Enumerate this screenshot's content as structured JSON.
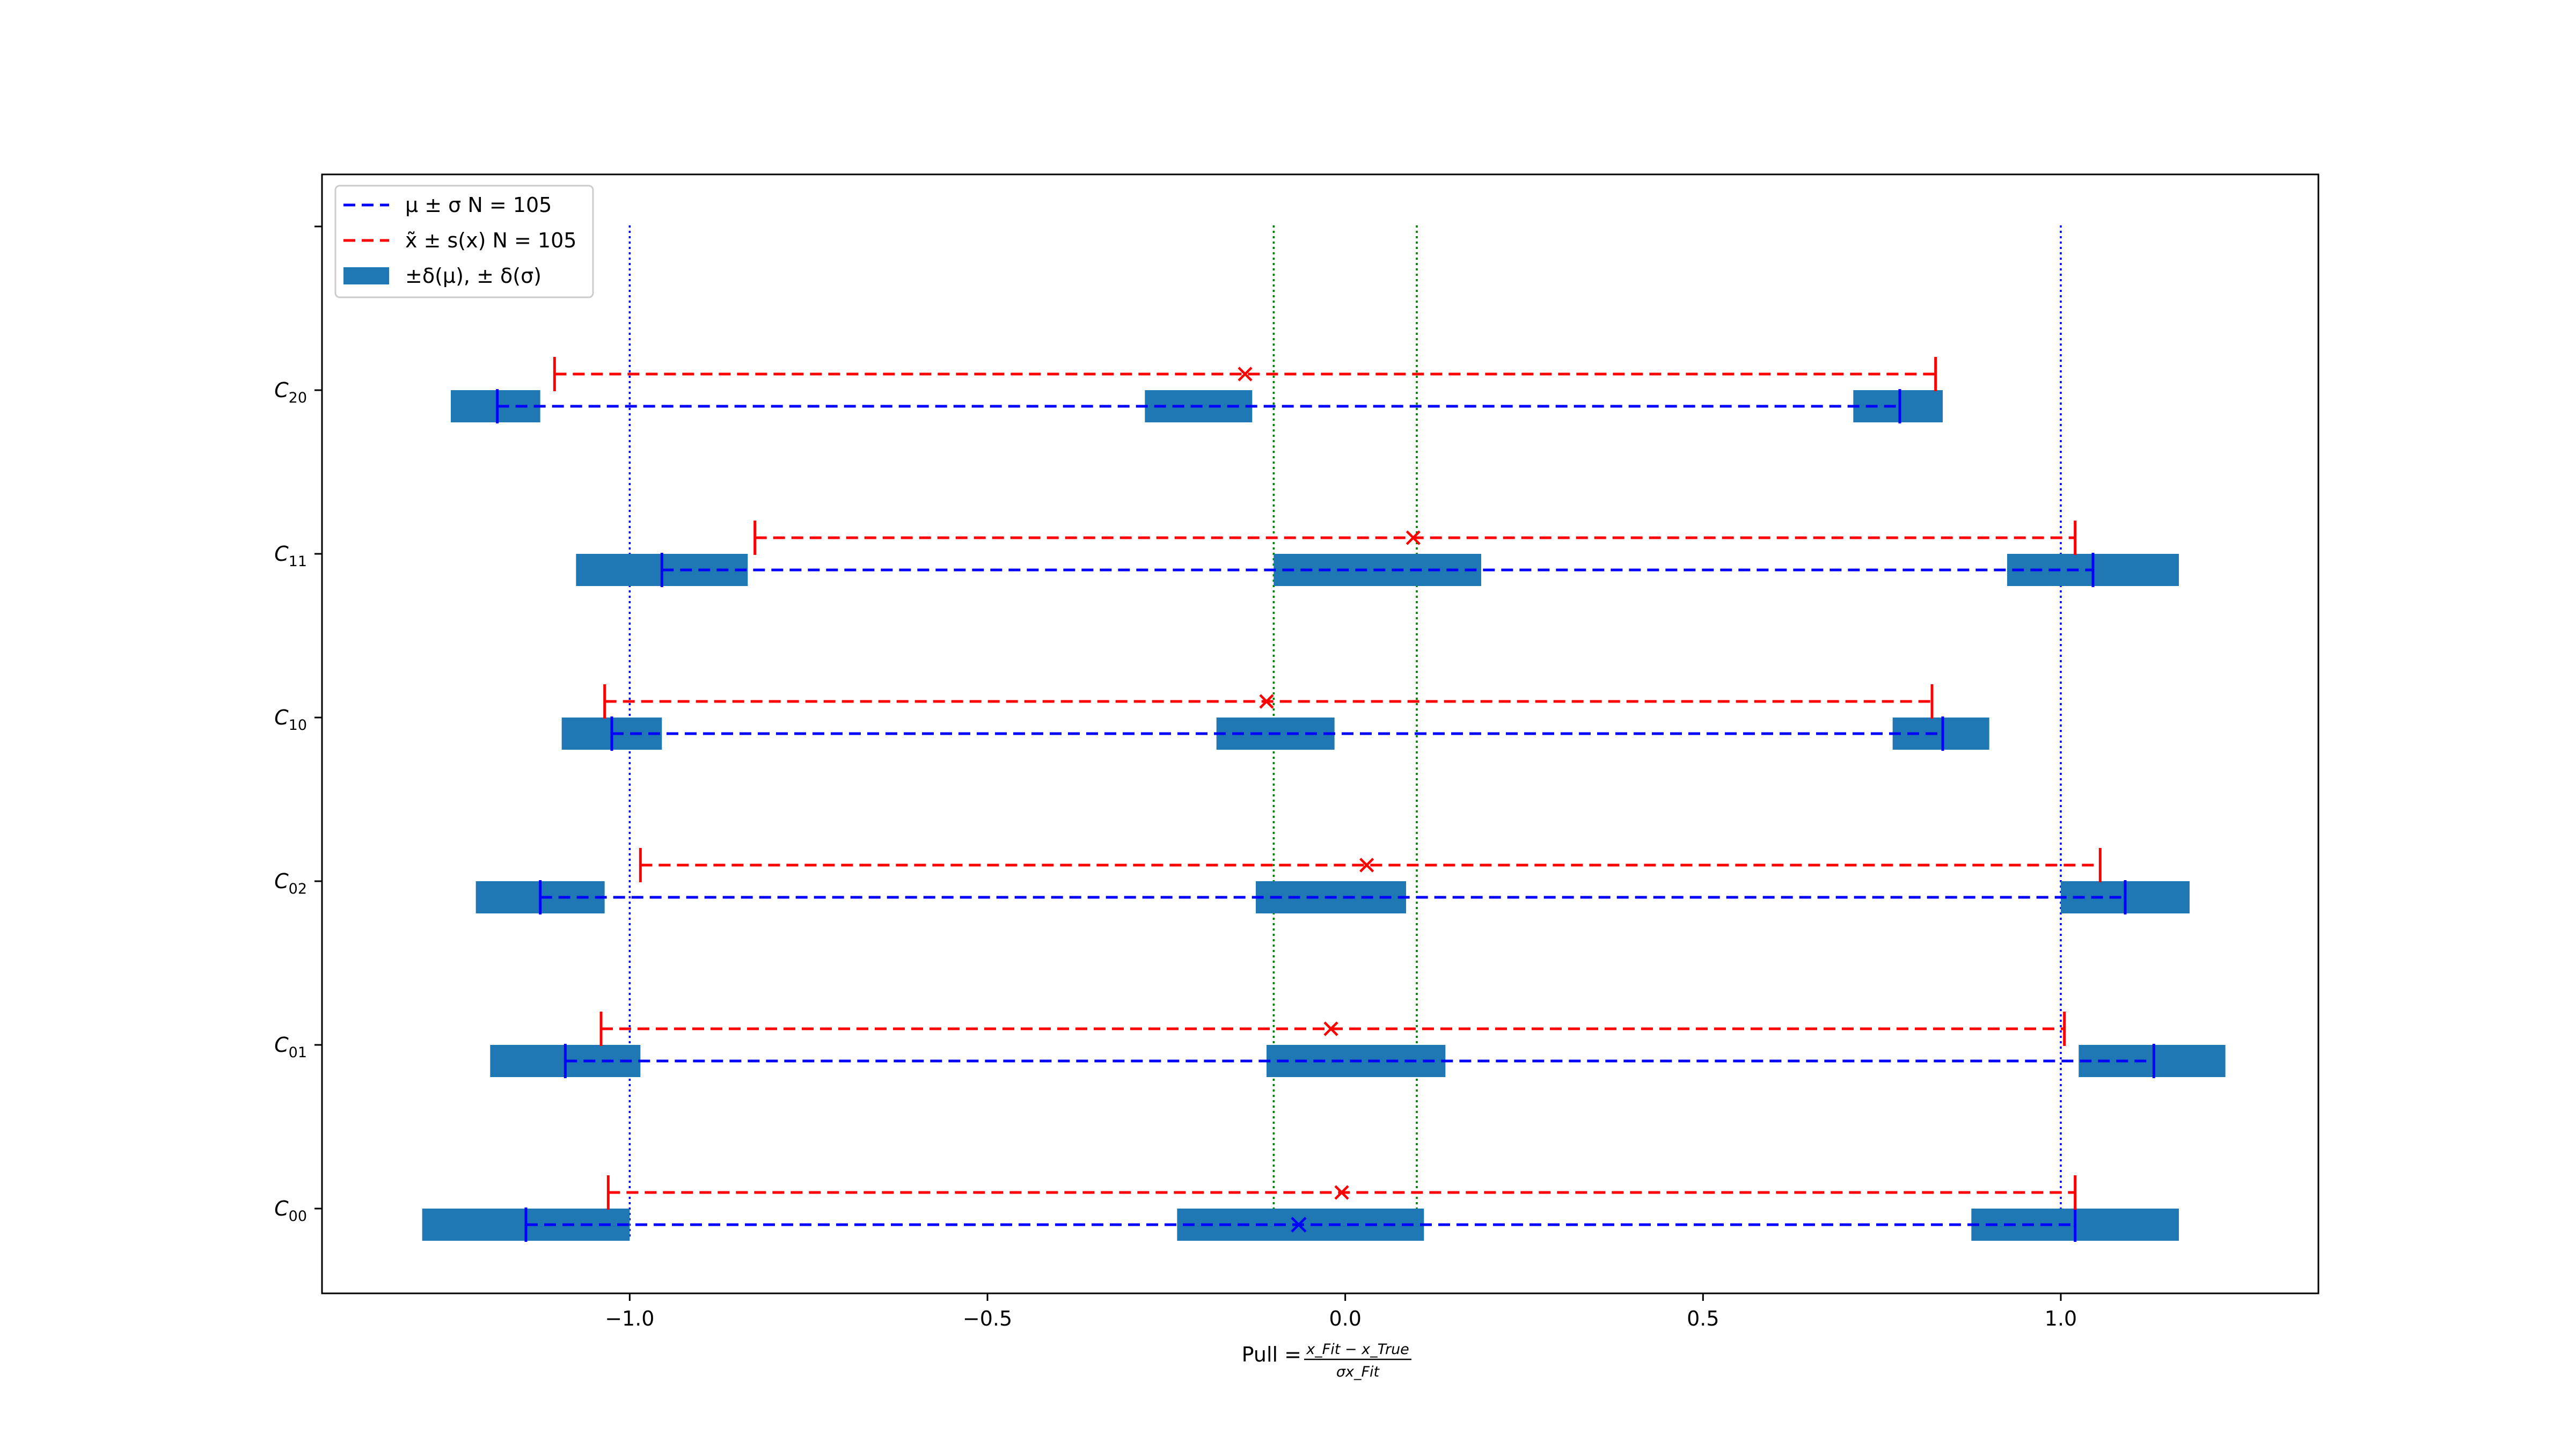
{
  "chart_data": {
    "type": "errorbar-interval",
    "xlabel": {
      "prefix": "Pull = ",
      "numerator": "x_Fit − x_True",
      "denominator": "σx_Fit"
    },
    "xlim": [
      -1.43,
      1.36
    ],
    "xticks": [
      -1.0,
      -0.5,
      0.0,
      0.5,
      1.0
    ],
    "xtick_labels": [
      "−1.0",
      "−0.5",
      "0.0",
      "0.5",
      "1.0"
    ],
    "categories": [
      {
        "id": "C00",
        "base": "C",
        "sub": "00"
      },
      {
        "id": "C01",
        "base": "C",
        "sub": "01"
      },
      {
        "id": "C02",
        "base": "C",
        "sub": "02"
      },
      {
        "id": "C10",
        "base": "C",
        "sub": "10"
      },
      {
        "id": "C11",
        "base": "C",
        "sub": "11"
      },
      {
        "id": "C20",
        "base": "C",
        "sub": "20"
      }
    ],
    "reference_lines": {
      "blue_dotted": [
        -1.0,
        1.0
      ],
      "green_dotted": [
        -0.1,
        0.1
      ],
      "blue_color": "#0000ff",
      "green_color": "#008000"
    },
    "legend": {
      "position": "upper-left",
      "entries": [
        {
          "kind": "dash",
          "color": "#0000ff",
          "label": "μ ± σ N = 105"
        },
        {
          "kind": "dash",
          "color": "#ff0000",
          "label": "x̃ ± s(x) N = 105"
        },
        {
          "kind": "patch",
          "color": "#1f77b4",
          "label": "±δ(μ), ± δ(σ)"
        }
      ]
    },
    "series": {
      "mu_sigma": {
        "color": "#0000ff",
        "points": [
          {
            "id": "C00",
            "mean": -0.065,
            "low": -1.145,
            "high": 1.02
          },
          {
            "id": "C01",
            "mean": 0.005,
            "low": -1.09,
            "high": 1.13
          },
          {
            "id": "C02",
            "mean": -0.015,
            "low": -1.125,
            "high": 1.09
          },
          {
            "id": "C10",
            "mean": -0.095,
            "low": -1.025,
            "high": 0.835
          },
          {
            "id": "C11",
            "mean": 0.045,
            "low": -0.955,
            "high": 1.045
          },
          {
            "id": "C20",
            "mean": -0.14,
            "low": -1.185,
            "high": 0.775
          }
        ]
      },
      "median_s": {
        "color": "#ff0000",
        "points": [
          {
            "id": "C00",
            "median": -0.005,
            "low": -1.03,
            "high": 1.02
          },
          {
            "id": "C01",
            "median": -0.02,
            "low": -1.04,
            "high": 1.005
          },
          {
            "id": "C02",
            "median": 0.03,
            "low": -0.985,
            "high": 1.055
          },
          {
            "id": "C10",
            "median": -0.11,
            "low": -1.035,
            "high": 0.82
          },
          {
            "id": "C11",
            "median": 0.095,
            "low": -0.825,
            "high": 1.02
          },
          {
            "id": "C20",
            "median": -0.14,
            "low": -1.105,
            "high": 0.825
          }
        ]
      },
      "uncertainty_boxes": {
        "color": "#1f77b4",
        "points": [
          {
            "id": "C00",
            "low": [
              -1.29,
              -1.0
            ],
            "mean": [
              -0.235,
              0.11
            ],
            "high": [
              0.875,
              1.165
            ]
          },
          {
            "id": "C01",
            "low": [
              -1.195,
              -0.985
            ],
            "mean": [
              -0.11,
              0.14
            ],
            "high": [
              1.025,
              1.23
            ]
          },
          {
            "id": "C02",
            "low": [
              -1.215,
              -1.035
            ],
            "mean": [
              -0.125,
              0.085
            ],
            "high": [
              1.0,
              1.18
            ]
          },
          {
            "id": "C10",
            "low": [
              -1.095,
              -0.955
            ],
            "mean": [
              -0.18,
              -0.015
            ],
            "high": [
              0.765,
              0.9
            ]
          },
          {
            "id": "C11",
            "low": [
              -1.075,
              -0.835
            ],
            "mean": [
              -0.1,
              0.19
            ],
            "high": [
              0.925,
              1.165
            ]
          },
          {
            "id": "C20",
            "low": [
              -1.25,
              -1.125
            ],
            "mean": [
              -0.28,
              -0.13
            ],
            "high": [
              0.71,
              0.835
            ]
          }
        ]
      }
    }
  }
}
